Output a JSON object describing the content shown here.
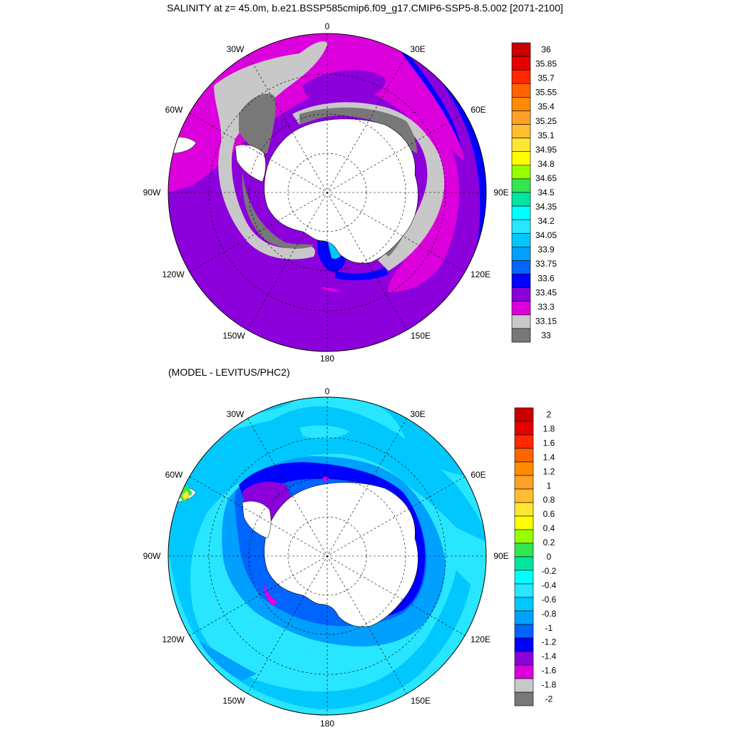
{
  "title": "SALINITY at z=  45.0m, b.e21.BSSP585cmip6.f09_g17.CMIP6-SSP5-8.5.002 [2071-2100]",
  "subtitle": "(MODEL - LEVITUS/PHC2)",
  "maps": [
    {
      "name": "salinity",
      "lon_labels": {
        "top": "0",
        "top_left": "30W",
        "top_right": "30E",
        "upper_left": "60W",
        "upper_right": "60E",
        "left": "90W",
        "right": "90E",
        "lower_left": "120W",
        "lower_right": "120E",
        "bottom_left": "150W",
        "bottom_right": "150E",
        "bottom": "180"
      },
      "colorbar": {
        "labels": [
          "36",
          "35.85",
          "35.7",
          "35.55",
          "35.4",
          "35.25",
          "35.1",
          "34.95",
          "34.8",
          "34.65",
          "34.5",
          "34.35",
          "34.2",
          "34.05",
          "33.9",
          "33.75",
          "33.6",
          "33.45",
          "33.3",
          "33.15",
          "33"
        ],
        "colors": [
          "#c80000",
          "#e60000",
          "#ff2800",
          "#ff6400",
          "#ff8c00",
          "#ffa028",
          "#ffbe32",
          "#ffe632",
          "#ffff00",
          "#96ff00",
          "#32e650",
          "#00e6a0",
          "#00ffff",
          "#28e6ff",
          "#00c8ff",
          "#00a0ff",
          "#0064ff",
          "#0000ff",
          "#8c00dc",
          "#dc00dc",
          "#c8c8c8",
          "#787878"
        ]
      }
    },
    {
      "name": "difference",
      "lon_labels": {
        "top": "0",
        "top_left": "30W",
        "top_right": "30E",
        "upper_left": "60W",
        "upper_right": "60E",
        "left": "90W",
        "right": "90E",
        "lower_left": "120W",
        "lower_right": "120E",
        "bottom_left": "150W",
        "bottom_right": "150E",
        "bottom": "180"
      },
      "colorbar": {
        "labels": [
          "2",
          "1.8",
          "1.6",
          "1.4",
          "1.2",
          "1",
          "0.8",
          "0.6",
          "0.4",
          "0.2",
          "0",
          "-0.2",
          "-0.4",
          "-0.6",
          "-0.8",
          "-1",
          "-1.2",
          "-1.4",
          "-1.6",
          "-1.8",
          "-2"
        ],
        "colors": [
          "#c80000",
          "#e60000",
          "#ff2800",
          "#ff6400",
          "#ff8c00",
          "#ffa028",
          "#ffbe32",
          "#ffe632",
          "#ffff00",
          "#96ff00",
          "#32e650",
          "#00e6a0",
          "#00ffff",
          "#28e6ff",
          "#00c8ff",
          "#00a0ff",
          "#0064ff",
          "#0000ff",
          "#8c00dc",
          "#dc00dc",
          "#c8c8c8",
          "#787878"
        ]
      }
    }
  ]
}
